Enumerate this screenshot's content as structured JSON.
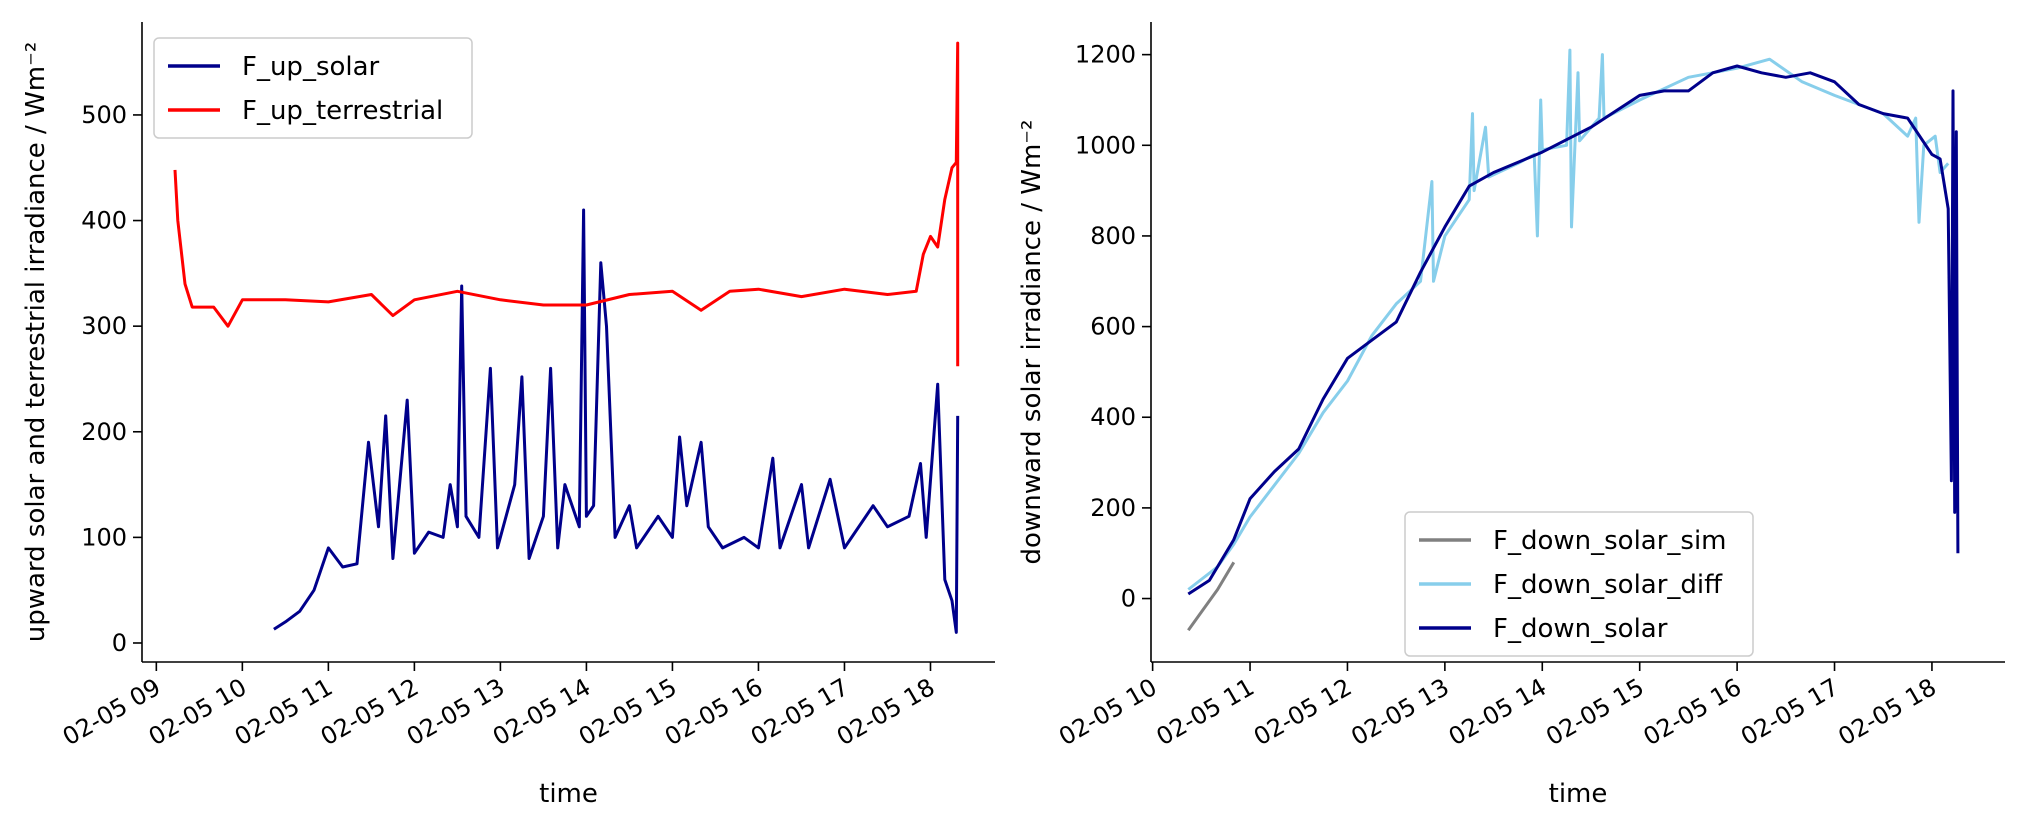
{
  "chart_data": [
    {
      "type": "line",
      "xlabel": "time",
      "ylabel": "upward solar and terrestrial irradiance / Wm⁻²",
      "x_ticks": [
        "02-05 09",
        "02-05 10",
        "02-05 11",
        "02-05 12",
        "02-05 13",
        "02-05 14",
        "02-05 15",
        "02-05 16",
        "02-05 17",
        "02-05 18"
      ],
      "y_ticks": [
        "0",
        "100",
        "200",
        "300",
        "400",
        "500"
      ],
      "xlim": [
        "02-05 08:50",
        "02-05 18:45"
      ],
      "ylim": [
        -18,
        588
      ],
      "legend_position": "top-left",
      "series": [
        {
          "name": "F_up_solar",
          "color": "#00008b",
          "points": [
            [
              "02-05 10:22",
              13
            ],
            [
              "02-05 10:30",
              20
            ],
            [
              "02-05 10:40",
              30
            ],
            [
              "02-05 10:50",
              50
            ],
            [
              "02-05 11:00",
              90
            ],
            [
              "02-05 11:10",
              72
            ],
            [
              "02-05 11:20",
              75
            ],
            [
              "02-05 11:28",
              190
            ],
            [
              "02-05 11:35",
              110
            ],
            [
              "02-05 11:40",
              215
            ],
            [
              "02-05 11:45",
              80
            ],
            [
              "02-05 11:55",
              230
            ],
            [
              "02-05 12:00",
              85
            ],
            [
              "02-05 12:10",
              105
            ],
            [
              "02-05 12:20",
              100
            ],
            [
              "02-05 12:25",
              150
            ],
            [
              "02-05 12:30",
              110
            ],
            [
              "02-05 12:33",
              338
            ],
            [
              "02-05 12:36",
              120
            ],
            [
              "02-05 12:45",
              100
            ],
            [
              "02-05 12:53",
              260
            ],
            [
              "02-05 12:58",
              90
            ],
            [
              "02-05 13:10",
              150
            ],
            [
              "02-05 13:15",
              252
            ],
            [
              "02-05 13:20",
              80
            ],
            [
              "02-05 13:30",
              120
            ],
            [
              "02-05 13:35",
              260
            ],
            [
              "02-05 13:40",
              90
            ],
            [
              "02-05 13:45",
              150
            ],
            [
              "02-05 13:55",
              110
            ],
            [
              "02-05 13:58",
              410
            ],
            [
              "02-05 14:00",
              120
            ],
            [
              "02-05 14:05",
              130
            ],
            [
              "02-05 14:10",
              360
            ],
            [
              "02-05 14:14",
              300
            ],
            [
              "02-05 14:20",
              100
            ],
            [
              "02-05 14:30",
              130
            ],
            [
              "02-05 14:35",
              90
            ],
            [
              "02-05 14:50",
              120
            ],
            [
              "02-05 15:00",
              100
            ],
            [
              "02-05 15:05",
              195
            ],
            [
              "02-05 15:10",
              130
            ],
            [
              "02-05 15:20",
              190
            ],
            [
              "02-05 15:25",
              110
            ],
            [
              "02-05 15:35",
              90
            ],
            [
              "02-05 15:50",
              100
            ],
            [
              "02-05 16:00",
              90
            ],
            [
              "02-05 16:10",
              175
            ],
            [
              "02-05 16:15",
              90
            ],
            [
              "02-05 16:30",
              150
            ],
            [
              "02-05 16:35",
              90
            ],
            [
              "02-05 16:50",
              155
            ],
            [
              "02-05 17:00",
              90
            ],
            [
              "02-05 17:20",
              130
            ],
            [
              "02-05 17:30",
              110
            ],
            [
              "02-05 17:45",
              120
            ],
            [
              "02-05 17:53",
              170
            ],
            [
              "02-05 17:57",
              100
            ],
            [
              "02-05 18:05",
              245
            ],
            [
              "02-05 18:10",
              60
            ],
            [
              "02-05 18:15",
              40
            ],
            [
              "02-05 18:18",
              10
            ],
            [
              "02-05 18:19",
              215
            ]
          ]
        },
        {
          "name": "F_up_terrestrial",
          "color": "#ff0000",
          "points": [
            [
              "02-05 09:13",
              448
            ],
            [
              "02-05 09:15",
              400
            ],
            [
              "02-05 09:20",
              340
            ],
            [
              "02-05 09:25",
              318
            ],
            [
              "02-05 09:40",
              318
            ],
            [
              "02-05 09:50",
              300
            ],
            [
              "02-05 10:00",
              325
            ],
            [
              "02-05 10:30",
              325
            ],
            [
              "02-05 11:00",
              323
            ],
            [
              "02-05 11:30",
              330
            ],
            [
              "02-05 11:45",
              310
            ],
            [
              "02-05 12:00",
              325
            ],
            [
              "02-05 12:30",
              333
            ],
            [
              "02-05 13:00",
              325
            ],
            [
              "02-05 13:30",
              320
            ],
            [
              "02-05 14:00",
              320
            ],
            [
              "02-05 14:30",
              330
            ],
            [
              "02-05 15:00",
              333
            ],
            [
              "02-05 15:20",
              315
            ],
            [
              "02-05 15:40",
              333
            ],
            [
              "02-05 16:00",
              335
            ],
            [
              "02-05 16:30",
              328
            ],
            [
              "02-05 17:00",
              335
            ],
            [
              "02-05 17:30",
              330
            ],
            [
              "02-05 17:50",
              333
            ],
            [
              "02-05 17:55",
              368
            ],
            [
              "02-05 18:00",
              385
            ],
            [
              "02-05 18:05",
              375
            ],
            [
              "02-05 18:10",
              420
            ],
            [
              "02-05 18:15",
              450
            ],
            [
              "02-05 18:18",
              455
            ],
            [
              "02-05 18:19",
              568
            ],
            [
              "02-05 18:19",
              262
            ]
          ]
        }
      ]
    },
    {
      "type": "line",
      "xlabel": "time",
      "ylabel": "downward solar irradiance / Wm⁻²",
      "x_ticks": [
        "02-05 10",
        "02-05 11",
        "02-05 12",
        "02-05 13",
        "02-05 14",
        "02-05 15",
        "02-05 16",
        "02-05 17",
        "02-05 18"
      ],
      "y_ticks": [
        "0",
        "200",
        "400",
        "600",
        "800",
        "1000",
        "1200"
      ],
      "xlim": [
        "02-05 09:59",
        "02-05 18:45"
      ],
      "ylim": [
        -140,
        1272
      ],
      "legend_position": "bottom-center",
      "series": [
        {
          "name": "F_down_solar_sim",
          "color": "#808080",
          "points": [
            [
              "02-05 10:22",
              -70
            ],
            [
              "02-05 10:30",
              -30
            ],
            [
              "02-05 10:40",
              20
            ],
            [
              "02-05 10:50",
              80
            ]
          ]
        },
        {
          "name": "F_down_solar_diff",
          "color": "#87ceeb",
          "points": [
            [
              "02-05 10:22",
              20
            ],
            [
              "02-05 10:40",
              70
            ],
            [
              "02-05 10:50",
              120
            ],
            [
              "02-05 11:00",
              180
            ],
            [
              "02-05 11:15",
              250
            ],
            [
              "02-05 11:30",
              320
            ],
            [
              "02-05 11:45",
              410
            ],
            [
              "02-05 12:00",
              480
            ],
            [
              "02-05 12:15",
              580
            ],
            [
              "02-05 12:30",
              650
            ],
            [
              "02-05 12:45",
              700
            ],
            [
              "02-05 12:52",
              920
            ],
            [
              "02-05 12:53",
              700
            ],
            [
              "02-05 13:00",
              800
            ],
            [
              "02-05 13:15",
              880
            ],
            [
              "02-05 13:17",
              1070
            ],
            [
              "02-05 13:18",
              900
            ],
            [
              "02-05 13:25",
              1040
            ],
            [
              "02-05 13:27",
              930
            ],
            [
              "02-05 13:45",
              960
            ],
            [
              "02-05 13:55",
              980
            ],
            [
              "02-05 13:57",
              800
            ],
            [
              "02-05 13:59",
              1100
            ],
            [
              "02-05 14:00",
              990
            ],
            [
              "02-05 14:15",
              1000
            ],
            [
              "02-05 14:17",
              1210
            ],
            [
              "02-05 14:18",
              820
            ],
            [
              "02-05 14:22",
              1160
            ],
            [
              "02-05 14:23",
              1010
            ],
            [
              "02-05 14:35",
              1060
            ],
            [
              "02-05 14:37",
              1200
            ],
            [
              "02-05 14:38",
              1060
            ],
            [
              "02-05 15:00",
              1100
            ],
            [
              "02-05 15:30",
              1150
            ],
            [
              "02-05 16:00",
              1170
            ],
            [
              "02-05 16:20",
              1190
            ],
            [
              "02-05 16:40",
              1140
            ],
            [
              "02-05 17:00",
              1110
            ],
            [
              "02-05 17:30",
              1070
            ],
            [
              "02-05 17:45",
              1020
            ],
            [
              "02-05 17:50",
              1060
            ],
            [
              "02-05 17:52",
              830
            ],
            [
              "02-05 17:55",
              1000
            ],
            [
              "02-05 18:02",
              1020
            ],
            [
              "02-05 18:05",
              940
            ],
            [
              "02-05 18:10",
              960
            ]
          ]
        },
        {
          "name": "F_down_solar",
          "color": "#00008b",
          "points": [
            [
              "02-05 10:22",
              10
            ],
            [
              "02-05 10:35",
              40
            ],
            [
              "02-05 10:50",
              130
            ],
            [
              "02-05 11:00",
              220
            ],
            [
              "02-05 11:15",
              280
            ],
            [
              "02-05 11:30",
              330
            ],
            [
              "02-05 11:45",
              440
            ],
            [
              "02-05 12:00",
              530
            ],
            [
              "02-05 12:15",
              570
            ],
            [
              "02-05 12:30",
              610
            ],
            [
              "02-05 12:45",
              720
            ],
            [
              "02-05 13:00",
              820
            ],
            [
              "02-05 13:15",
              910
            ],
            [
              "02-05 13:30",
              940
            ],
            [
              "02-05 14:00",
              985
            ],
            [
              "02-05 14:30",
              1040
            ],
            [
              "02-05 15:00",
              1110
            ],
            [
              "02-05 15:15",
              1120
            ],
            [
              "02-05 15:30",
              1120
            ],
            [
              "02-05 15:45",
              1160
            ],
            [
              "02-05 16:00",
              1175
            ],
            [
              "02-05 16:15",
              1160
            ],
            [
              "02-05 16:30",
              1150
            ],
            [
              "02-05 16:45",
              1160
            ],
            [
              "02-05 17:00",
              1140
            ],
            [
              "02-05 17:15",
              1090
            ],
            [
              "02-05 17:30",
              1070
            ],
            [
              "02-05 17:45",
              1060
            ],
            [
              "02-05 18:00",
              980
            ],
            [
              "02-05 18:05",
              970
            ],
            [
              "02-05 18:10",
              860
            ],
            [
              "02-05 18:12",
              260
            ],
            [
              "02-05 18:13",
              1120
            ],
            [
              "02-05 18:14",
              190
            ],
            [
              "02-05 18:15",
              1030
            ],
            [
              "02-05 18:16",
              100
            ]
          ]
        }
      ]
    }
  ]
}
